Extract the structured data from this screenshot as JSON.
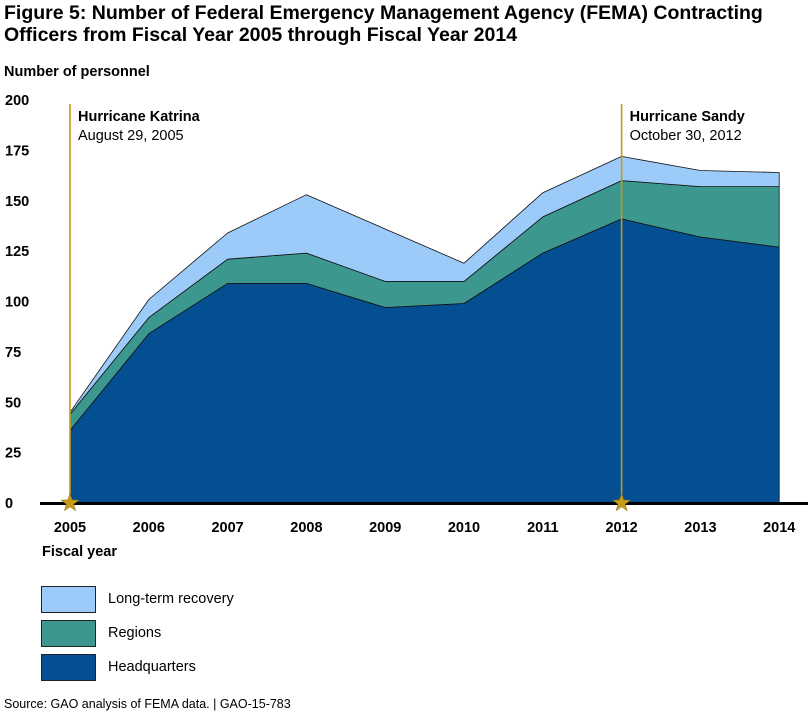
{
  "title": {
    "line1": "Figure 5: Number of Federal Emergency Management Agency (FEMA) Contracting",
    "line2": "Officers from Fiscal Year 2005 through Fiscal Year 2014"
  },
  "source": "Source: GAO analysis of FEMA data.  |  GAO-15-783",
  "chart_data": {
    "type": "area",
    "stacked": true,
    "title": "Number of Federal Emergency Management Agency (FEMA) Contracting Officers from Fiscal Year 2005 through Fiscal Year 2014",
    "ylabel": "Number of personnel",
    "xlabel": "Fiscal year",
    "ylim": [
      0,
      200
    ],
    "yticks": [
      0,
      25,
      50,
      75,
      100,
      125,
      150,
      175,
      200
    ],
    "grid": false,
    "categories": [
      "2005",
      "2006",
      "2007",
      "2008",
      "2009",
      "2010",
      "2011",
      "2012",
      "2013",
      "2014"
    ],
    "series": [
      {
        "name": "Headquarters",
        "color": "#034f91",
        "values": [
          36,
          84,
          109,
          109,
          97,
          99,
          124,
          141,
          132,
          127
        ]
      },
      {
        "name": "Regions",
        "color": "#3c978f",
        "values": [
          8,
          8,
          12,
          15,
          13,
          11,
          18,
          19,
          25,
          30
        ]
      },
      {
        "name": "Long-term recovery",
        "color": "#9ccbf9",
        "values": [
          1,
          9,
          13,
          29,
          26,
          9,
          12,
          12,
          8,
          7
        ]
      }
    ],
    "legend_order": [
      "Long-term recovery",
      "Regions",
      "Headquarters"
    ],
    "annotations": [
      {
        "x": "2005",
        "title": "Hurricane Katrina",
        "date": "August 29, 2005",
        "color": "#c69a1a"
      },
      {
        "x": "2012",
        "title": "Hurricane Sandy",
        "date": "October 30, 2012",
        "color": "#c69a1a"
      }
    ]
  }
}
